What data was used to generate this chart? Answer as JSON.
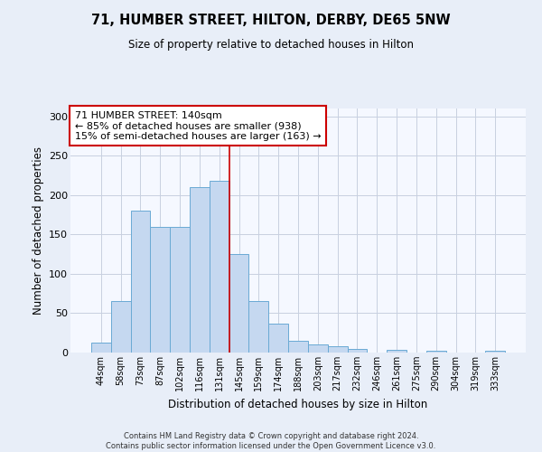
{
  "title": "71, HUMBER STREET, HILTON, DERBY, DE65 5NW",
  "subtitle": "Size of property relative to detached houses in Hilton",
  "xlabel": "Distribution of detached houses by size in Hilton",
  "ylabel": "Number of detached properties",
  "bin_labels": [
    "44sqm",
    "58sqm",
    "73sqm",
    "87sqm",
    "102sqm",
    "116sqm",
    "131sqm",
    "145sqm",
    "159sqm",
    "174sqm",
    "188sqm",
    "203sqm",
    "217sqm",
    "232sqm",
    "246sqm",
    "261sqm",
    "275sqm",
    "290sqm",
    "304sqm",
    "319sqm",
    "333sqm"
  ],
  "bar_heights": [
    13,
    66,
    180,
    160,
    160,
    210,
    218,
    125,
    65,
    37,
    15,
    10,
    8,
    5,
    0,
    3,
    0,
    2,
    0,
    0,
    2
  ],
  "bar_color": "#c5d8f0",
  "bar_edgecolor": "#6aaad4",
  "red_line_color": "#cc0000",
  "annotation_box_color": "#ffffff",
  "annotation_box_edgecolor": "#cc0000",
  "ylim": [
    0,
    310
  ],
  "yticks": [
    0,
    50,
    100,
    150,
    200,
    250,
    300
  ],
  "footer1": "Contains HM Land Registry data © Crown copyright and database right 2024.",
  "footer2": "Contains public sector information licensed under the Open Government Licence v3.0.",
  "background_color": "#e8eef8",
  "plot_bg_color": "#f5f8ff",
  "grid_color": "#c8d0e0",
  "property_label": "71 HUMBER STREET: 140sqm",
  "annotation_line1": "← 85% of detached houses are smaller (938)",
  "annotation_line2": "15% of semi-detached houses are larger (163) →"
}
